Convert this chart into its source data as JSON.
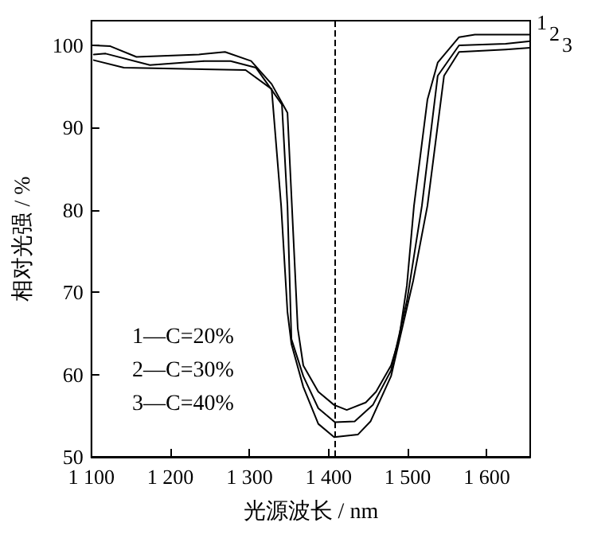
{
  "chart_data": {
    "type": "line",
    "xlabel": "光源波长 / nm",
    "ylabel": "相对光强 / %",
    "xlim": [
      1100,
      1655
    ],
    "ylim": [
      50,
      103
    ],
    "xticks": [
      {
        "value": 1100,
        "label": "1 100"
      },
      {
        "value": 1200,
        "label": "1 200"
      },
      {
        "value": 1300,
        "label": "1 300"
      },
      {
        "value": 1400,
        "label": "1 400"
      },
      {
        "value": 1500,
        "label": "1 500"
      },
      {
        "value": 1600,
        "label": "1 600"
      }
    ],
    "yticks": [
      50,
      60,
      70,
      80,
      90,
      100
    ],
    "grid": false,
    "legend": false,
    "marker": "none",
    "line_style": "solid",
    "ref_lines": [
      {
        "axis": "x",
        "value": 1408,
        "line_style": "dashed",
        "color": "#000000"
      }
    ],
    "annotations": [
      "1—C=20%",
      "2—C=30%",
      "3—C=40%"
    ],
    "series": [
      {
        "name": "1",
        "color": "#000000",
        "x": [
          1103,
          1124,
          1157,
          1236,
          1269,
          1302,
          1328,
          1348,
          1361,
          1368,
          1387,
          1407,
          1423,
          1447,
          1460,
          1479,
          1489,
          1499,
          1508,
          1525,
          1538,
          1565,
          1585,
          1655
        ],
        "values": [
          100.0,
          99.9,
          98.6,
          98.9,
          99.2,
          98.1,
          95.3,
          91.8,
          65.6,
          61.1,
          57.9,
          56.3,
          55.7,
          56.6,
          57.9,
          61.1,
          64.3,
          70.8,
          80.5,
          93.4,
          97.9,
          101.0,
          101.3,
          101.3
        ]
      },
      {
        "name": "2",
        "color": "#000000",
        "x": [
          1103,
          1118,
          1174,
          1243,
          1276,
          1308,
          1328,
          1341,
          1348,
          1353,
          1368,
          1387,
          1408,
          1433,
          1456,
          1479,
          1499,
          1518,
          1538,
          1565,
          1624,
          1655
        ],
        "values": [
          98.9,
          99.0,
          97.6,
          98.1,
          98.1,
          97.3,
          94.6,
          92.8,
          80.5,
          64.3,
          59.8,
          55.9,
          54.2,
          54.3,
          56.3,
          60.5,
          68.9,
          80.5,
          96.3,
          100.0,
          100.2,
          100.5
        ]
      },
      {
        "name": "3",
        "color": "#000000",
        "x": [
          1103,
          1141,
          1295,
          1328,
          1340,
          1348,
          1353,
          1368,
          1387,
          1407,
          1437,
          1453,
          1479,
          1507,
          1525,
          1546,
          1565,
          1624,
          1655
        ],
        "values": [
          98.2,
          97.3,
          97.0,
          94.7,
          80.5,
          67.6,
          63.7,
          58.5,
          54.0,
          52.4,
          52.7,
          54.3,
          59.8,
          71.4,
          80.5,
          96.3,
          99.2,
          99.5,
          99.7
        ]
      }
    ]
  }
}
